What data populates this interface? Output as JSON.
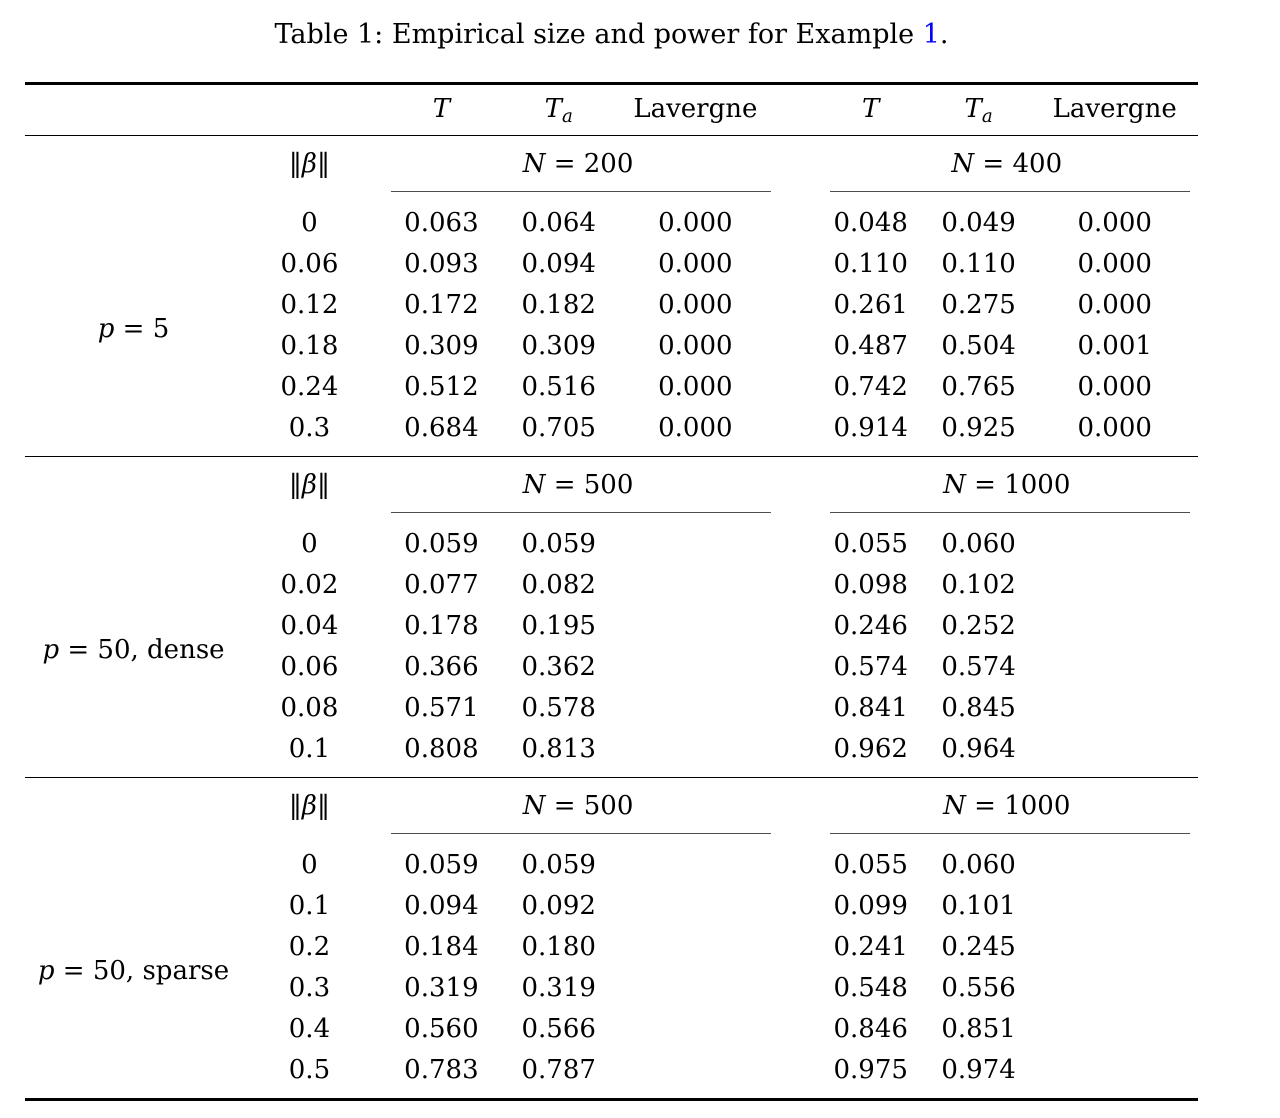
{
  "caption": {
    "prefix": "Table 1: Empirical size and power for Example ",
    "ref": "1",
    "suffix": "."
  },
  "colors": {
    "ref_link": "#0000ff",
    "heavy_rule": "#000000",
    "thin_rule": "#000000",
    "cmidrule": "#4d4d4d"
  },
  "columns": {
    "t": "T",
    "ta_base": "T",
    "ta_sub": "a",
    "lavergne": "Lavergne"
  },
  "beta_header": {
    "open": "‖",
    "sym": "β",
    "close": "‖"
  },
  "sections": [
    {
      "label": {
        "var": "p",
        "rest": " = 5"
      },
      "blocks": [
        {
          "var": "N",
          "rest": " = 200"
        },
        {
          "var": "N",
          "rest": " = 400"
        }
      ],
      "rows": [
        {
          "beta": "0",
          "v": [
            "0.063",
            "0.064",
            "0.000",
            "0.048",
            "0.049",
            "0.000"
          ]
        },
        {
          "beta": "0.06",
          "v": [
            "0.093",
            "0.094",
            "0.000",
            "0.110",
            "0.110",
            "0.000"
          ]
        },
        {
          "beta": "0.12",
          "v": [
            "0.172",
            "0.182",
            "0.000",
            "0.261",
            "0.275",
            "0.000"
          ]
        },
        {
          "beta": "0.18",
          "v": [
            "0.309",
            "0.309",
            "0.000",
            "0.487",
            "0.504",
            "0.001"
          ]
        },
        {
          "beta": "0.24",
          "v": [
            "0.512",
            "0.516",
            "0.000",
            "0.742",
            "0.765",
            "0.000"
          ]
        },
        {
          "beta": "0.3",
          "v": [
            "0.684",
            "0.705",
            "0.000",
            "0.914",
            "0.925",
            "0.000"
          ]
        }
      ]
    },
    {
      "label": {
        "var": "p",
        "rest": " = 50, dense"
      },
      "blocks": [
        {
          "var": "N",
          "rest": " = 500"
        },
        {
          "var": "N",
          "rest": " = 1000"
        }
      ],
      "rows": [
        {
          "beta": "0",
          "v": [
            "0.059",
            "0.059",
            "",
            "0.055",
            "0.060",
            ""
          ]
        },
        {
          "beta": "0.02",
          "v": [
            "0.077",
            "0.082",
            "",
            "0.098",
            "0.102",
            ""
          ]
        },
        {
          "beta": "0.04",
          "v": [
            "0.178",
            "0.195",
            "",
            "0.246",
            "0.252",
            ""
          ]
        },
        {
          "beta": "0.06",
          "v": [
            "0.366",
            "0.362",
            "",
            "0.574",
            "0.574",
            ""
          ]
        },
        {
          "beta": "0.08",
          "v": [
            "0.571",
            "0.578",
            "",
            "0.841",
            "0.845",
            ""
          ]
        },
        {
          "beta": "0.1",
          "v": [
            "0.808",
            "0.813",
            "",
            "0.962",
            "0.964",
            ""
          ]
        }
      ]
    },
    {
      "label": {
        "var": "p",
        "rest": " = 50, sparse"
      },
      "blocks": [
        {
          "var": "N",
          "rest": " = 500"
        },
        {
          "var": "N",
          "rest": " = 1000"
        }
      ],
      "rows": [
        {
          "beta": "0",
          "v": [
            "0.059",
            "0.059",
            "",
            "0.055",
            "0.060",
            ""
          ]
        },
        {
          "beta": "0.1",
          "v": [
            "0.094",
            "0.092",
            "",
            "0.099",
            "0.101",
            ""
          ]
        },
        {
          "beta": "0.2",
          "v": [
            "0.184",
            "0.180",
            "",
            "0.241",
            "0.245",
            ""
          ]
        },
        {
          "beta": "0.3",
          "v": [
            "0.319",
            "0.319",
            "",
            "0.548",
            "0.556",
            ""
          ]
        },
        {
          "beta": "0.4",
          "v": [
            "0.560",
            "0.566",
            "",
            "0.846",
            "0.851",
            ""
          ]
        },
        {
          "beta": "0.5",
          "v": [
            "0.783",
            "0.787",
            "",
            "0.975",
            "0.974",
            ""
          ]
        }
      ]
    }
  ]
}
